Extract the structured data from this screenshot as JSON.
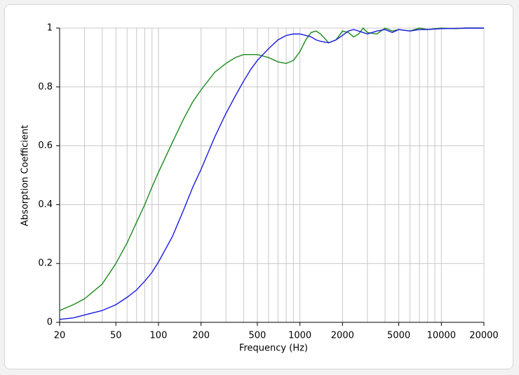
{
  "chart_data": {
    "type": "line",
    "x_label": "Frequency (Hz)",
    "y_label": "Absorption Coefficient",
    "xscale": "log",
    "grid": true,
    "xlim": [
      20,
      20000
    ],
    "xticks": [
      20,
      50,
      100,
      200,
      500,
      1000,
      2000,
      5000,
      10000,
      20000
    ],
    "xminorticks": [
      30,
      40,
      60,
      70,
      80,
      90,
      300,
      400,
      600,
      700,
      800,
      900,
      3000,
      4000,
      6000,
      7000,
      8000,
      9000
    ],
    "ylim": [
      0,
      1
    ],
    "yticks": [
      0,
      0.2,
      0.4,
      0.6,
      0.8,
      1
    ],
    "x": [
      20,
      25,
      30,
      40,
      50,
      60,
      70,
      80,
      90,
      100,
      125,
      150,
      175,
      200,
      250,
      300,
      350,
      400,
      450,
      500,
      600,
      700,
      800,
      900,
      1000,
      1100,
      1200,
      1300,
      1400,
      1600,
      1800,
      2000,
      2200,
      2400,
      2600,
      2800,
      3000,
      3500,
      4000,
      4500,
      5000,
      6000,
      7000,
      8000,
      10000,
      12500,
      15000,
      20000
    ],
    "series": [
      {
        "color": "#1a8a1a",
        "values": [
          0.04,
          0.06,
          0.08,
          0.13,
          0.2,
          0.27,
          0.34,
          0.4,
          0.46,
          0.51,
          0.61,
          0.69,
          0.75,
          0.79,
          0.85,
          0.88,
          0.9,
          0.91,
          0.91,
          0.91,
          0.9,
          0.885,
          0.88,
          0.89,
          0.92,
          0.96,
          0.985,
          0.99,
          0.98,
          0.95,
          0.96,
          0.99,
          0.985,
          0.97,
          0.98,
          1.0,
          0.985,
          0.98,
          1.0,
          0.99,
          0.995,
          0.99,
          1.0,
          0.995,
          1.0,
          0.998,
          1.0,
          1.0
        ]
      },
      {
        "color": "#1a1ae0",
        "values": [
          0.01,
          0.015,
          0.025,
          0.04,
          0.06,
          0.085,
          0.11,
          0.14,
          0.17,
          0.205,
          0.29,
          0.38,
          0.46,
          0.52,
          0.63,
          0.71,
          0.77,
          0.82,
          0.86,
          0.89,
          0.93,
          0.96,
          0.975,
          0.98,
          0.98,
          0.975,
          0.97,
          0.96,
          0.955,
          0.95,
          0.96,
          0.975,
          0.99,
          0.995,
          0.99,
          0.985,
          0.98,
          0.99,
          0.995,
          0.985,
          0.995,
          0.99,
          0.995,
          0.995,
          0.998,
          0.999,
          1.0,
          1.0
        ]
      }
    ]
  }
}
